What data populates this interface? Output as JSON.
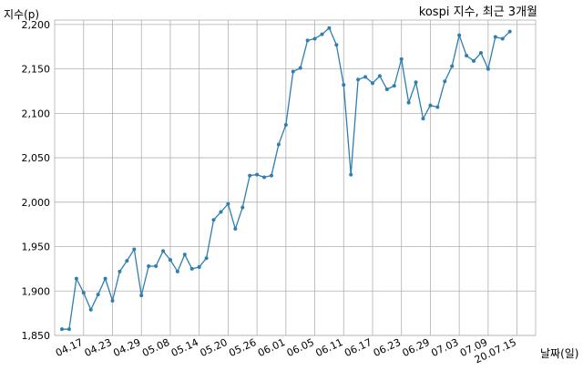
{
  "chart_data": {
    "type": "line",
    "title": "kospi 지수, 최근 3개월",
    "ylabel": "지수(p)",
    "xlabel": "날짜(일)",
    "ylim": [
      1850,
      2205
    ],
    "yticks": [
      1850,
      1900,
      1950,
      2000,
      2050,
      2100,
      2150,
      2200
    ],
    "ytick_labels": [
      "1,850",
      "1,900",
      "1,950",
      "2,000",
      "2,050",
      "2,100",
      "2,150",
      "2,200"
    ],
    "xtick_labels": [
      "04.17",
      "04.23",
      "04.29",
      "05.08",
      "05.14",
      "05.20",
      "05.26",
      "06.01",
      "06.05",
      "06.11",
      "06.17",
      "06.23",
      "06.29",
      "07.03",
      "07.09",
      "20.07.15"
    ],
    "xtick_index": [
      3,
      7,
      11,
      15,
      19,
      23,
      27,
      31,
      35,
      39,
      43,
      47,
      51,
      55,
      59,
      63
    ],
    "grid": true,
    "line_color": "#2f7eb0",
    "series": [
      {
        "name": "",
        "values": [
          1857,
          1857,
          1914,
          1898,
          1879,
          1896,
          1914,
          1889,
          1922,
          1934,
          1947,
          1895,
          1928,
          1928,
          1945,
          1935,
          1922,
          1941,
          1925,
          1927,
          1937,
          1980,
          1989,
          1998,
          1970,
          1994,
          2030,
          2031,
          2028,
          2030,
          2065,
          2087,
          2147,
          2151,
          2182,
          2184,
          2189,
          2196,
          2177,
          2132,
          2031,
          2138,
          2141,
          2134,
          2142,
          2127,
          2131,
          2161,
          2112,
          2135,
          2094,
          2109,
          2107,
          2136,
          2153,
          2188,
          2165,
          2159,
          2168,
          2150,
          2186,
          2184,
          2192
        ]
      }
    ]
  }
}
